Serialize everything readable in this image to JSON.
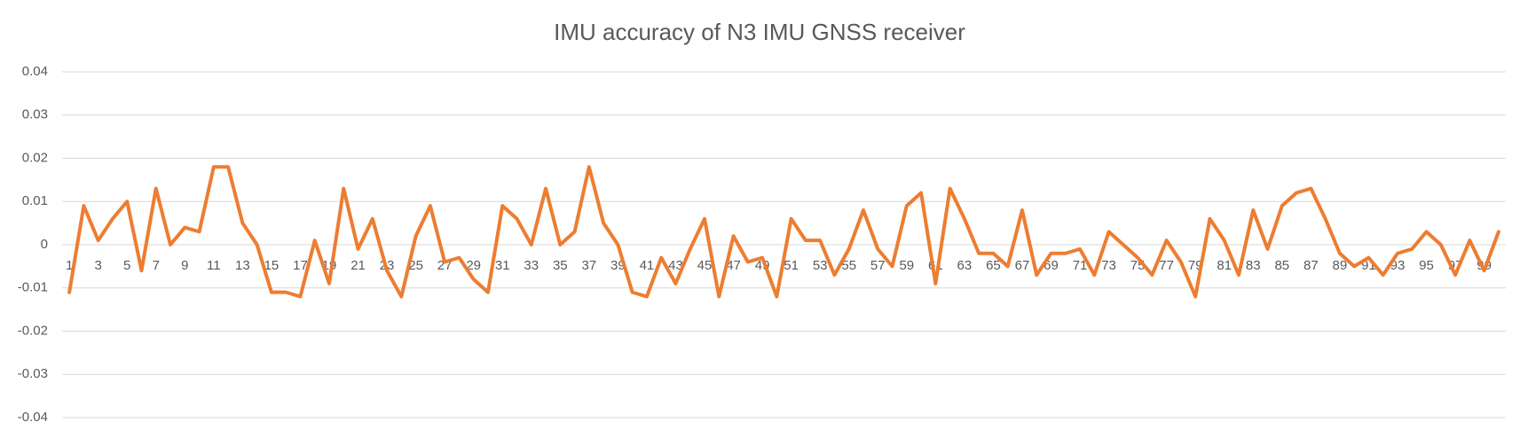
{
  "chart_data": {
    "type": "line",
    "title": "IMU accuracy of N3 IMU GNSS receiver",
    "categories": [
      1,
      null,
      3,
      null,
      5,
      null,
      7,
      null,
      9,
      null,
      11,
      null,
      13,
      null,
      15,
      null,
      17,
      null,
      19,
      null,
      21,
      null,
      23,
      null,
      25,
      null,
      27,
      null,
      29,
      null,
      31,
      null,
      33,
      null,
      35,
      null,
      37,
      null,
      39,
      null,
      41,
      null,
      43,
      null,
      45,
      null,
      47,
      null,
      49,
      null,
      51,
      null,
      53,
      null,
      55,
      null,
      57,
      null,
      59,
      null,
      61,
      null,
      63,
      null,
      65,
      null,
      67,
      null,
      69,
      null,
      71,
      null,
      73,
      null,
      75,
      null,
      77,
      null,
      79,
      null,
      81,
      null,
      83,
      null,
      85,
      null,
      87,
      null,
      89,
      null,
      91,
      null,
      93,
      null,
      95,
      null,
      97,
      null,
      99,
      null
    ],
    "values": [
      -0.011,
      0.009,
      0.001,
      0.006,
      0.01,
      -0.006,
      0.013,
      0,
      0.004,
      0.003,
      0.018,
      0.018,
      0.005,
      0,
      -0.011,
      -0.011,
      -0.012,
      0.001,
      -0.009,
      0.013,
      -0.001,
      0.006,
      -0.006,
      -0.012,
      0.002,
      0.009,
      -0.004,
      -0.003,
      -0.008,
      -0.011,
      0.009,
      0.006,
      0,
      0.013,
      0,
      0.003,
      0.018,
      0.005,
      0,
      -0.011,
      -0.012,
      -0.003,
      -0.009,
      -0.001,
      0.006,
      -0.012,
      0.002,
      -0.004,
      -0.003,
      -0.012,
      0.006,
      0.001,
      0.001,
      -0.007,
      -0.001,
      0.008,
      -0.001,
      -0.005,
      0.009,
      0.012,
      -0.009,
      0.013,
      0.006,
      -0.002,
      -0.002,
      -0.005,
      0.008,
      -0.007,
      -0.002,
      -0.002,
      -0.001,
      -0.007,
      0.003,
      0,
      -0.003,
      -0.007,
      0.001,
      -0.004,
      -0.012,
      0.006,
      0.001,
      -0.007,
      0.008,
      -0.001,
      0.009,
      0.012,
      0.013,
      0.006,
      -0.002,
      -0.005,
      -0.003,
      -0.007,
      -0.002,
      -0.001,
      0.003,
      0,
      -0.007,
      0.001,
      -0.006,
      0.003
    ],
    "color": "#ed7d31",
    "ylim": [
      -0.04,
      0.04
    ],
    "yticks": [
      -0.04,
      -0.03,
      -0.02,
      -0.01,
      0,
      0.01,
      0.02,
      0.03,
      0.04
    ],
    "grid": true
  }
}
